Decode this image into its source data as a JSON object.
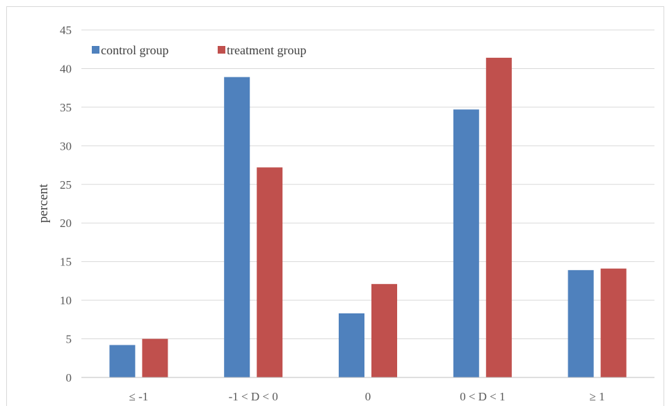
{
  "chart_data": {
    "type": "bar",
    "title": "",
    "xlabel": "",
    "ylabel": "percent",
    "ylim": [
      0,
      45
    ],
    "yticks": [
      0,
      5,
      10,
      15,
      20,
      25,
      30,
      35,
      40,
      45
    ],
    "grid": true,
    "legend_position": "top-left",
    "categories": [
      "≤ -1",
      "-1 < D < 0",
      "0",
      "0 < D < 1",
      "≥ 1"
    ],
    "series": [
      {
        "name": "control group",
        "color": "#4f81bd",
        "values": [
          4.2,
          38.9,
          8.3,
          34.7,
          13.9
        ]
      },
      {
        "name": "treatment group",
        "color": "#c0504d",
        "values": [
          5.0,
          27.2,
          12.1,
          41.4,
          14.1
        ]
      }
    ]
  }
}
